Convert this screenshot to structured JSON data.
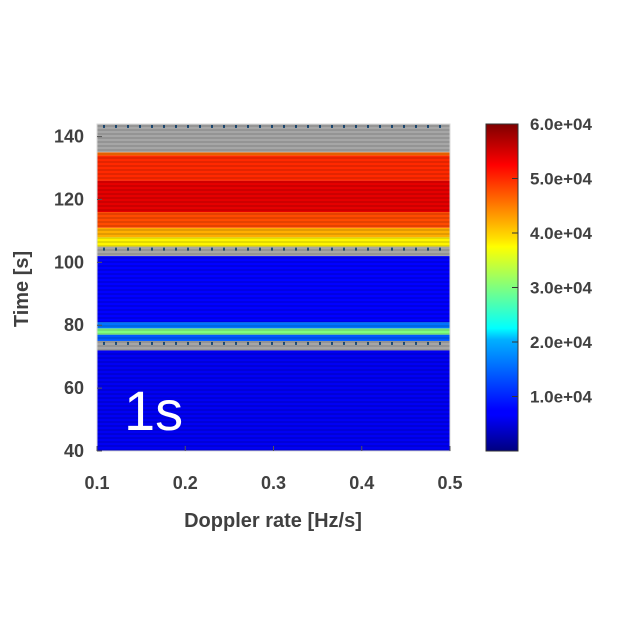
{
  "chart_data": {
    "type": "heatmap",
    "title": "",
    "xlabel": "Doppler rate [Hz/s]",
    "ylabel": "Time [s]",
    "xlim": [
      0.1,
      0.5
    ],
    "ylim": [
      40,
      144
    ],
    "x_ticks": [
      "0.1",
      "0.2",
      "0.3",
      "0.4",
      "0.5"
    ],
    "y_ticks": [
      "40",
      "60",
      "80",
      "100",
      "120",
      "140"
    ],
    "annotation": "1s",
    "grid": false,
    "colorbar": {
      "colormap": "jet",
      "range": [
        0,
        60000
      ],
      "position": "right",
      "tick_values": [
        10000,
        20000,
        30000,
        40000,
        50000,
        60000
      ],
      "tick_labels": [
        "1.0e+04",
        "2.0e+04",
        "3.0e+04",
        "4.0e+04",
        "5.0e+04",
        "6.0e+04"
      ]
    },
    "bands": [
      {
        "t_start": 40,
        "t_end": 72,
        "value": 6000,
        "masked": false
      },
      {
        "t_start": 72,
        "t_end": 75,
        "value": null,
        "masked": true
      },
      {
        "t_start": 75,
        "t_end": 77,
        "value": 14000,
        "masked": false
      },
      {
        "t_start": 77,
        "t_end": 79,
        "value": 30000,
        "masked": false
      },
      {
        "t_start": 79,
        "t_end": 81,
        "value": 16000,
        "masked": false
      },
      {
        "t_start": 81,
        "t_end": 102,
        "value": 7000,
        "masked": false
      },
      {
        "t_start": 102,
        "t_end": 105,
        "value": null,
        "masked": true
      },
      {
        "t_start": 105,
        "t_end": 108,
        "value": 38000,
        "masked": false
      },
      {
        "t_start": 108,
        "t_end": 111,
        "value": 42000,
        "masked": false
      },
      {
        "t_start": 111,
        "t_end": 116,
        "value": 48000,
        "masked": false
      },
      {
        "t_start": 116,
        "t_end": 126,
        "value": 54000,
        "masked": false
      },
      {
        "t_start": 126,
        "t_end": 134,
        "value": 50000,
        "masked": false
      },
      {
        "t_start": 134,
        "t_end": 135,
        "value": 46000,
        "masked": false
      },
      {
        "t_start": 135,
        "t_end": 144,
        "value": null,
        "masked": true
      }
    ]
  }
}
